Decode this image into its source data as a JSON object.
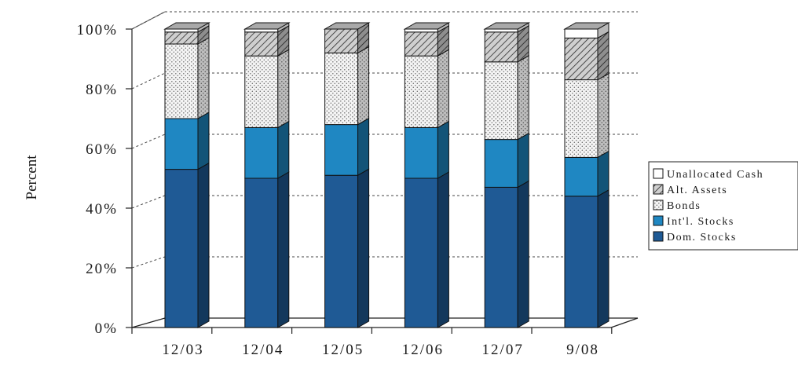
{
  "chart_data": {
    "type": "bar",
    "stacked": true,
    "three_d": true,
    "ylabel": "Percent",
    "xlabel": "",
    "ylim": [
      0,
      100
    ],
    "yticks": [
      "0%",
      "20%",
      "40%",
      "60%",
      "80%",
      "100%"
    ],
    "grid": "horizontal dashed",
    "legend_position": "right",
    "categories": [
      "12/03",
      "12/04",
      "12/05",
      "12/06",
      "12/07",
      "9/08"
    ],
    "series": [
      {
        "name": "Dom. Stocks",
        "values": [
          53,
          50,
          51,
          50,
          47,
          44
        ],
        "color": "#1f5a95",
        "pattern": "solid"
      },
      {
        "name": "Int'l. Stocks",
        "values": [
          17,
          17,
          17,
          17,
          16,
          13
        ],
        "color": "#1f87c2",
        "pattern": "solid"
      },
      {
        "name": "Bonds",
        "values": [
          25,
          24,
          24,
          24,
          26,
          26
        ],
        "color": "#f4f4f4",
        "pattern": "dots"
      },
      {
        "name": "Alt. Assets",
        "values": [
          4,
          8,
          8,
          8,
          10,
          14
        ],
        "color": "#c9c9c9",
        "pattern": "hatch"
      },
      {
        "name": "Unallocated Cash",
        "values": [
          1,
          1,
          0,
          1,
          1,
          3
        ],
        "color": "#ffffff",
        "pattern": "solid"
      }
    ],
    "legend_order": [
      "Unallocated Cash",
      "Alt. Assets",
      "Bonds",
      "Int'l. Stocks",
      "Dom. Stocks"
    ]
  }
}
